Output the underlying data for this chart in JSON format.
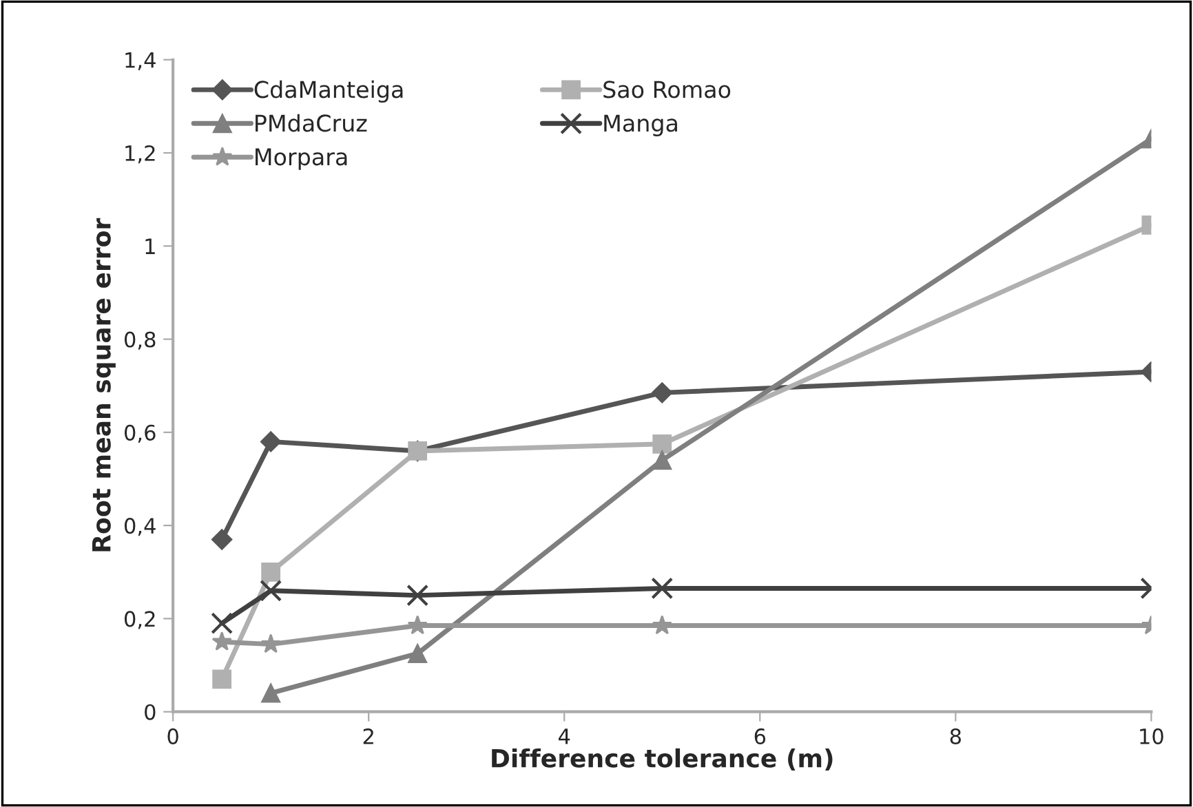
{
  "chart_data": {
    "type": "line",
    "xlabel": "Difference tolerance (m)",
    "ylabel": "Root mean square error",
    "x": [
      0.5,
      1,
      2.5,
      5,
      10
    ],
    "series": [
      {
        "name": "CdaManteiga",
        "color": "#555555",
        "marker": "diamond",
        "values": [
          0.37,
          0.58,
          0.56,
          0.685,
          0.73
        ]
      },
      {
        "name": "Sao Romao",
        "color": "#b0b0b0",
        "marker": "square",
        "values": [
          0.07,
          0.3,
          0.56,
          0.575,
          1.045
        ]
      },
      {
        "name": "PMdaCruz",
        "color": "#7f7f7f",
        "marker": "triangle",
        "values": [
          null,
          0.04,
          0.125,
          0.54,
          1.23
        ]
      },
      {
        "name": "Manga",
        "color": "#404040",
        "marker": "cross",
        "values": [
          0.19,
          0.26,
          0.25,
          0.265,
          0.265
        ]
      },
      {
        "name": "Morpara",
        "color": "#959595",
        "marker": "star",
        "values": [
          0.15,
          0.145,
          0.185,
          0.185,
          0.185
        ]
      }
    ],
    "xlim": [
      0,
      10
    ],
    "xticks": [
      0,
      2,
      4,
      6,
      8,
      10
    ],
    "ylim": [
      0,
      1.4
    ],
    "yticks": [
      0,
      {
        "value": 0.2,
        "label": "0,2"
      },
      {
        "value": 0.4,
        "label": "0,4"
      },
      {
        "value": 0.6,
        "label": "0,6"
      },
      {
        "value": 0.8,
        "label": "0,8"
      },
      {
        "value": 1,
        "label": "1"
      },
      {
        "value": 1.2,
        "label": "1,2"
      },
      {
        "value": 1.4,
        "label": "1,4"
      }
    ],
    "grid": false,
    "legend": "top left"
  }
}
